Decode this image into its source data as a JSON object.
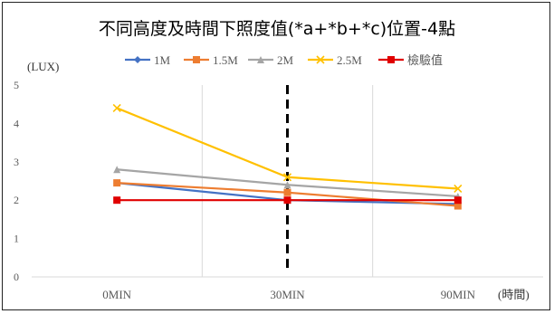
{
  "chart_data": {
    "type": "line",
    "title": "不同高度及時間下照度值(*a+*b+*c)位置-4點",
    "ylabel": "(LUX)",
    "xlabel": "(時間)",
    "categories": [
      "0MIN",
      "30MIN",
      "90MIN"
    ],
    "ylim": [
      0,
      5
    ],
    "yticks": [
      0,
      1,
      2,
      3,
      4,
      5
    ],
    "grid": "vertical",
    "legend_position": "top",
    "series": [
      {
        "name": "1M",
        "values": [
          2.45,
          2.0,
          1.9
        ],
        "color": "#4472C4",
        "marker": "diamond"
      },
      {
        "name": "1.5M",
        "values": [
          2.45,
          2.2,
          1.85
        ],
        "color": "#ED7D31",
        "marker": "square"
      },
      {
        "name": "2M",
        "values": [
          2.8,
          2.4,
          2.1
        ],
        "color": "#A5A5A5",
        "marker": "triangle"
      },
      {
        "name": "2.5M",
        "values": [
          4.4,
          2.6,
          2.3
        ],
        "color": "#FFC000",
        "marker": "x"
      },
      {
        "name": "檢驗值",
        "values": [
          2.0,
          2.0,
          2.0
        ],
        "color": "#E00000",
        "marker": "square"
      }
    ],
    "reference_line": {
      "category": "30MIN",
      "style": "dashed",
      "color": "#000000"
    }
  }
}
